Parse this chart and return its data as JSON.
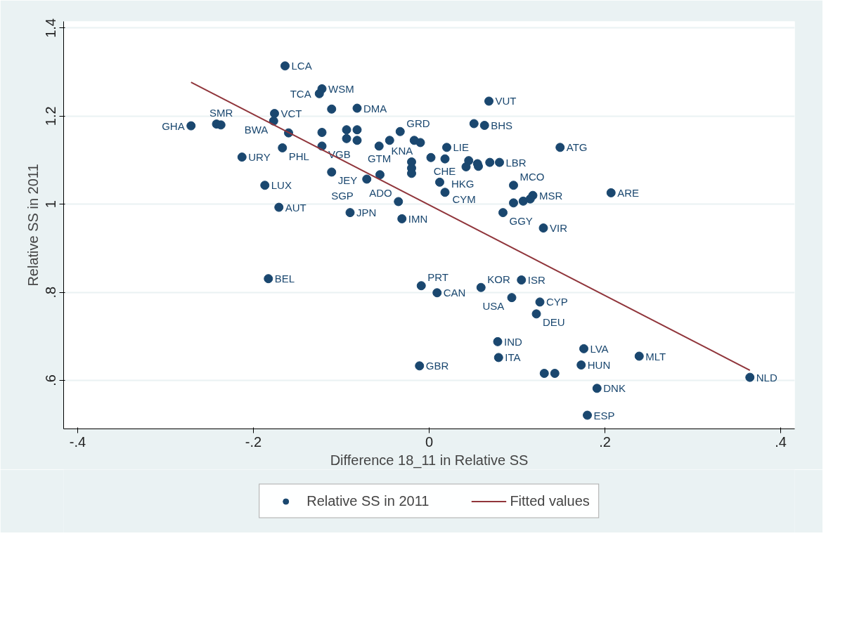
{
  "chart_data": {
    "type": "scatter",
    "xlabel": "Difference 18_11 in Relative SS",
    "ylabel": "Relative SS in 2011",
    "xlim": [
      -0.416,
      0.416
    ],
    "ylim": [
      0.49,
      1.415
    ],
    "xticks": [
      {
        "value": -0.4,
        "label": "-.4"
      },
      {
        "value": -0.2,
        "label": "-.2"
      },
      0,
      {
        "value": 0.2,
        "label": ".2"
      },
      {
        "value": 0.4,
        "label": ".4"
      }
    ],
    "yticks": [
      {
        "value": 0.6,
        "label": ".6"
      },
      {
        "value": 0.8,
        "label": ".8"
      },
      1,
      1.2,
      1.4
    ],
    "grid": "y",
    "legend": "bottom",
    "series": [
      {
        "name": "Relative SS in 2011",
        "type": "scatter",
        "marker": "circle",
        "color": "#1a476f",
        "x": [
          -0.164,
          -0.122,
          -0.125,
          -0.111,
          -0.082,
          0.068,
          -0.176,
          -0.177,
          -0.271,
          -0.242,
          -0.237,
          -0.16,
          -0.167,
          -0.122,
          -0.122,
          -0.094,
          -0.082,
          -0.094,
          -0.082,
          -0.033,
          -0.057,
          -0.045,
          -0.017,
          -0.01,
          0.02,
          -0.213,
          -0.111,
          -0.071,
          -0.056,
          -0.187,
          -0.171,
          -0.09,
          -0.035,
          -0.031,
          -0.02,
          -0.02,
          -0.02,
          0.002,
          0.018,
          0.045,
          0.055,
          0.069,
          0.08,
          0.042,
          0.056,
          0.012,
          0.018,
          0.096,
          0.118,
          0.096,
          0.107,
          0.115,
          0.207,
          0.084,
          0.13,
          0.149,
          0.051,
          0.063,
          -0.183,
          -0.009,
          0.009,
          0.059,
          0.105,
          0.094,
          0.126,
          0.122,
          0.078,
          0.079,
          -0.011,
          0.176,
          0.239,
          0.173,
          0.131,
          0.143,
          0.191,
          0.18,
          0.365
        ],
        "values": [
          1.314,
          1.262,
          1.251,
          1.216,
          1.218,
          1.234,
          1.206,
          1.189,
          1.178,
          1.182,
          1.18,
          1.162,
          1.128,
          1.132,
          1.163,
          1.169,
          1.169,
          1.149,
          1.145,
          1.165,
          1.132,
          1.145,
          1.145,
          1.14,
          1.129,
          1.107,
          1.073,
          1.057,
          1.067,
          1.043,
          0.993,
          0.981,
          1.006,
          0.967,
          1.096,
          1.082,
          1.07,
          1.106,
          1.103,
          1.099,
          1.092,
          1.095,
          1.095,
          1.085,
          1.086,
          1.05,
          1.027,
          1.043,
          1.02,
          1.003,
          1.007,
          1.012,
          1.026,
          0.981,
          0.946,
          1.129,
          1.183,
          1.179,
          0.831,
          0.815,
          0.799,
          0.811,
          0.828,
          0.788,
          0.778,
          0.751,
          0.688,
          0.652,
          0.633,
          0.672,
          0.655,
          0.635,
          0.616,
          0.616,
          0.582,
          0.521,
          0.607
        ],
        "value_labels": [
          "LCA",
          "WSM",
          "TCA",
          null,
          "DMA",
          "VUT",
          "VCT",
          "BWA",
          "GHA",
          null,
          "SMR",
          null,
          "PHL",
          "VGB",
          null,
          null,
          null,
          null,
          null,
          "GRD",
          "GTM",
          null,
          null,
          "KNA",
          "LIE",
          "URY",
          "JEY",
          "SGP",
          null,
          "LUX",
          "AUT",
          "JPN",
          "ADO",
          "IMN",
          null,
          null,
          null,
          null,
          "CHE",
          null,
          null,
          null,
          "LBR",
          null,
          null,
          "CYM",
          "HKG",
          "MCO",
          "MSR",
          null,
          null,
          null,
          "ARE",
          "GGY",
          "VIR",
          "ATG",
          null,
          "BHS",
          "BEL",
          "PRT",
          "CAN",
          "KOR",
          "ISR",
          "USA",
          "CYP",
          "DEU",
          "IND",
          "ITA",
          "GBR",
          "LVA",
          "MLT",
          "HUN",
          null,
          null,
          "DNK",
          "ESP",
          "NLD"
        ]
      },
      {
        "name": "Fitted values",
        "type": "line",
        "color": "#90353b",
        "x": [
          -0.271,
          0.365
        ],
        "values": [
          1.277,
          0.623
        ]
      }
    ]
  }
}
